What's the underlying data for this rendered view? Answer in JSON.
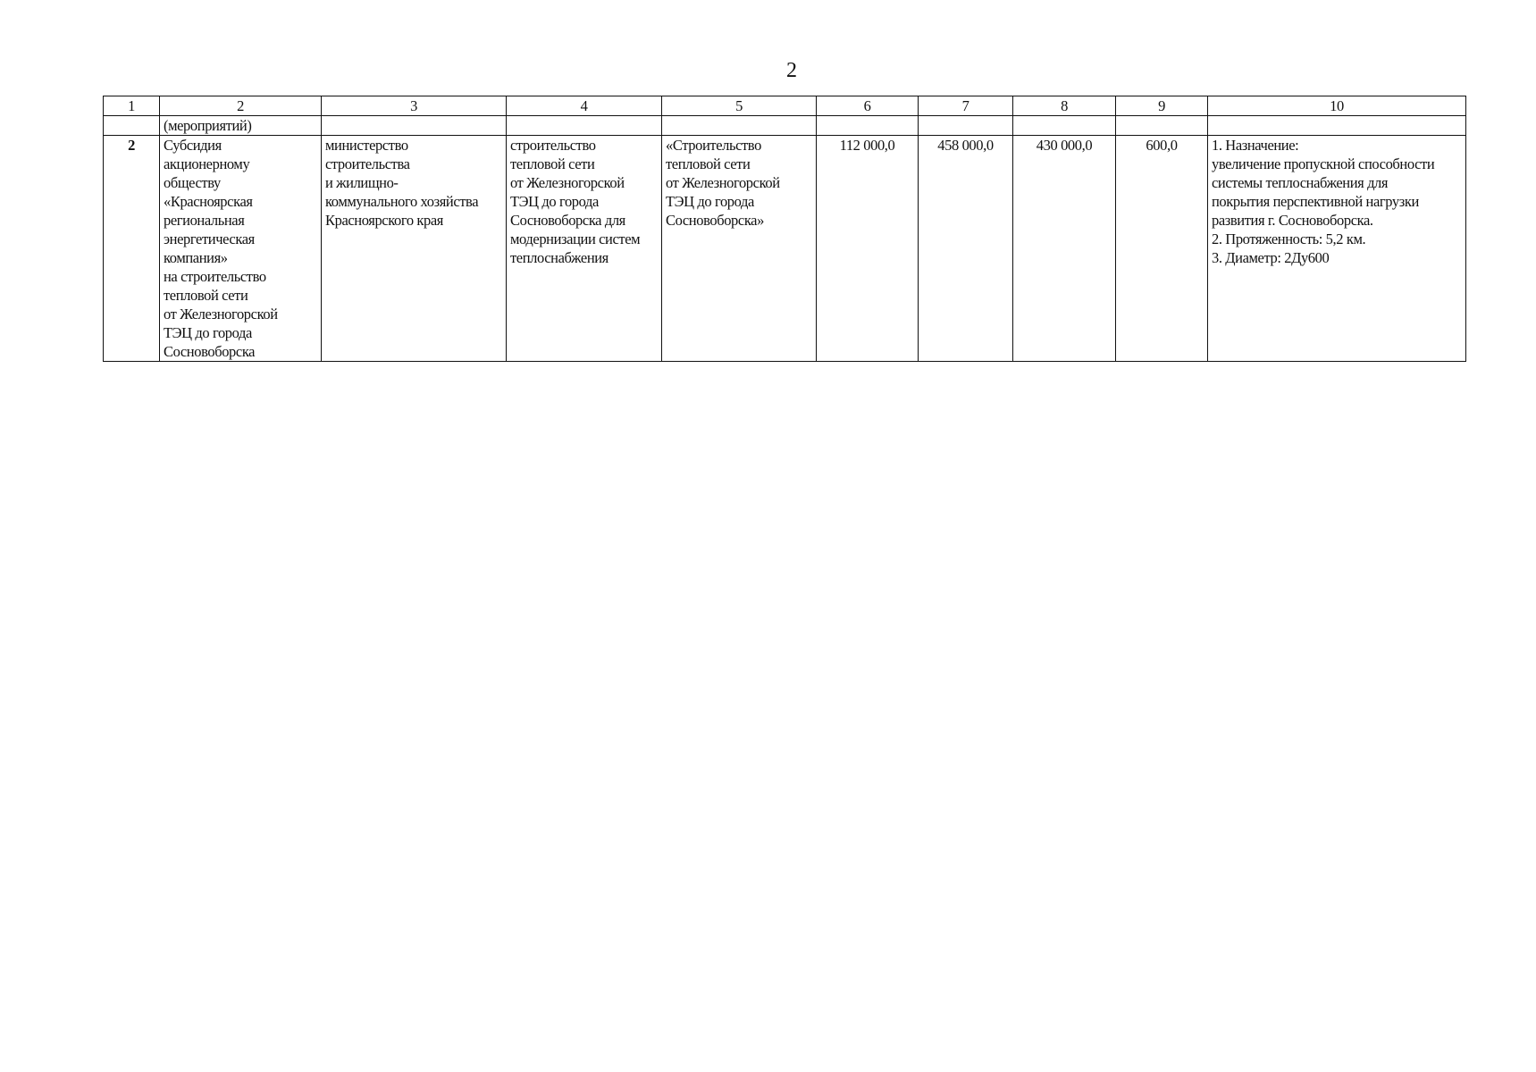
{
  "page_number": "2",
  "table": {
    "headers": [
      "1",
      "2",
      "3",
      "4",
      "5",
      "6",
      "7",
      "8",
      "9",
      "10"
    ],
    "continuation_row": [
      "",
      "(мероприятий)",
      "",
      "",
      "",
      "",
      "",
      "",
      "",
      ""
    ],
    "rows": [
      {
        "col1": "2",
        "col2": [
          "Субсидия",
          "акционерному",
          "обществу",
          "«Красноярская",
          "региональная",
          "энергетическая",
          "компания»",
          "на строительство",
          "тепловой сети",
          "от Железногорской",
          "ТЭЦ до города",
          "Сосновоборска"
        ],
        "col3": [
          "министерство",
          "строительства",
          "и жилищно-",
          "коммунального хозяйства",
          "Красноярского края"
        ],
        "col4": [
          "строительство",
          "тепловой сети",
          "от Железногорской",
          "ТЭЦ до города",
          "Сосновоборска для",
          "модернизации систем",
          "теплоснабжения"
        ],
        "col5": [
          "«Строительство",
          "тепловой сети",
          "от Железногорской",
          "ТЭЦ до города",
          "Сосновоборска»"
        ],
        "col6": "112 000,0",
        "col7": "458 000,0",
        "col8": "430 000,0",
        "col9": "600,0",
        "col10": [
          "1. Назначение:",
          "увеличение пропускной способности",
          "системы теплоснабжения для",
          "покрытия перспективной нагрузки",
          "развития г. Сосновоборска.",
          "2. Протяженность: 5,2 км.",
          "3. Диаметр: 2Ду600"
        ]
      }
    ]
  }
}
